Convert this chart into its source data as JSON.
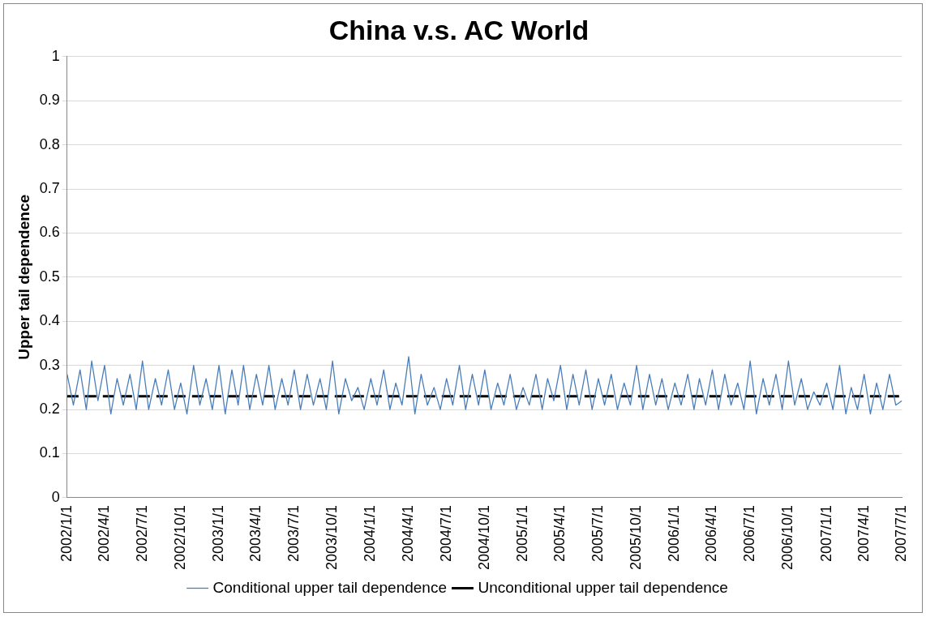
{
  "chart_data": {
    "type": "line",
    "title": "China v.s. AC World",
    "ylabel": "Upper tail dependence",
    "ylim": [
      0,
      1
    ],
    "yticks": [
      0,
      0.1,
      0.2,
      0.3,
      0.4,
      0.5,
      0.6,
      0.7,
      0.8,
      0.9,
      1
    ],
    "xlim": [
      "2002-01-01",
      "2007-07-01"
    ],
    "xticks": [
      {
        "value": "2002-01-01",
        "label": "2002/1/1"
      },
      {
        "value": "2002-04-01",
        "label": "2002/4/1"
      },
      {
        "value": "2002-07-01",
        "label": "2002/7/1"
      },
      {
        "value": "2002-10-01",
        "label": "2002/10/1"
      },
      {
        "value": "2003-01-01",
        "label": "2003/1/1"
      },
      {
        "value": "2003-04-01",
        "label": "2003/4/1"
      },
      {
        "value": "2003-07-01",
        "label": "2003/7/1"
      },
      {
        "value": "2003-10-01",
        "label": "2003/10/1"
      },
      {
        "value": "2004-01-01",
        "label": "2004/1/1"
      },
      {
        "value": "2004-04-01",
        "label": "2004/4/1"
      },
      {
        "value": "2004-07-01",
        "label": "2004/7/1"
      },
      {
        "value": "2004-10-01",
        "label": "2004/10/1"
      },
      {
        "value": "2005-01-01",
        "label": "2005/1/1"
      },
      {
        "value": "2005-04-01",
        "label": "2005/4/1"
      },
      {
        "value": "2005-07-01",
        "label": "2005/7/1"
      },
      {
        "value": "2005-10-01",
        "label": "2005/10/1"
      },
      {
        "value": "2006-01-01",
        "label": "2006/1/1"
      },
      {
        "value": "2006-04-01",
        "label": "2006/4/1"
      },
      {
        "value": "2006-07-01",
        "label": "2006/7/1"
      },
      {
        "value": "2006-10-01",
        "label": "2006/10/1"
      },
      {
        "value": "2007-01-01",
        "label": "2007/1/1"
      },
      {
        "value": "2007-04-01",
        "label": "2007/4/1"
      },
      {
        "value": "2007-07-01",
        "label": "2007/7/1"
      }
    ],
    "grid": "y",
    "legend": "bottom",
    "marker": "none",
    "series": [
      {
        "name": "Conditional upper tail dependence",
        "color": "#4a7ebb",
        "line_style": "solid",
        "x": [
          "2002-01-01",
          "2002-01-16",
          "2002-02-01",
          "2002-02-16",
          "2002-03-01",
          "2002-03-16",
          "2002-04-01",
          "2002-04-16",
          "2002-05-01",
          "2002-05-16",
          "2002-06-01",
          "2002-06-16",
          "2002-07-01",
          "2002-07-16",
          "2002-08-01",
          "2002-08-16",
          "2002-09-01",
          "2002-09-16",
          "2002-10-01",
          "2002-10-16",
          "2002-11-01",
          "2002-11-16",
          "2002-12-01",
          "2002-12-16",
          "2003-01-01",
          "2003-01-16",
          "2003-02-01",
          "2003-02-16",
          "2003-03-01",
          "2003-03-16",
          "2003-04-01",
          "2003-04-16",
          "2003-05-01",
          "2003-05-16",
          "2003-06-01",
          "2003-06-16",
          "2003-07-01",
          "2003-07-16",
          "2003-08-01",
          "2003-08-16",
          "2003-09-01",
          "2003-09-16",
          "2003-10-01",
          "2003-10-16",
          "2003-11-01",
          "2003-11-16",
          "2003-12-01",
          "2003-12-16",
          "2004-01-01",
          "2004-01-16",
          "2004-02-01",
          "2004-02-16",
          "2004-03-01",
          "2004-03-16",
          "2004-04-01",
          "2004-04-16",
          "2004-05-01",
          "2004-05-16",
          "2004-06-01",
          "2004-06-16",
          "2004-07-01",
          "2004-07-16",
          "2004-08-01",
          "2004-08-16",
          "2004-09-01",
          "2004-09-16",
          "2004-10-01",
          "2004-10-16",
          "2004-11-01",
          "2004-11-16",
          "2004-12-01",
          "2004-12-16",
          "2005-01-01",
          "2005-01-16",
          "2005-02-01",
          "2005-02-16",
          "2005-03-01",
          "2005-03-16",
          "2005-04-01",
          "2005-04-16",
          "2005-05-01",
          "2005-05-16",
          "2005-06-01",
          "2005-06-16",
          "2005-07-01",
          "2005-07-16",
          "2005-08-01",
          "2005-08-16",
          "2005-09-01",
          "2005-09-16",
          "2005-10-01",
          "2005-10-16",
          "2005-11-01",
          "2005-11-16",
          "2005-12-01",
          "2005-12-16",
          "2006-01-01",
          "2006-01-16",
          "2006-02-01",
          "2006-02-16",
          "2006-03-01",
          "2006-03-16",
          "2006-04-01",
          "2006-04-16",
          "2006-05-01",
          "2006-05-16",
          "2006-06-01",
          "2006-06-16",
          "2006-07-01",
          "2006-07-16",
          "2006-08-01",
          "2006-08-16",
          "2006-09-01",
          "2006-09-16",
          "2006-10-01",
          "2006-10-16",
          "2006-11-01",
          "2006-11-16",
          "2006-12-01",
          "2006-12-16",
          "2007-01-01",
          "2007-01-16",
          "2007-02-01",
          "2007-02-16",
          "2007-03-01",
          "2007-03-16",
          "2007-04-01",
          "2007-04-16",
          "2007-05-01",
          "2007-05-16",
          "2007-06-01",
          "2007-06-16",
          "2007-07-01"
        ],
        "values": [
          0.28,
          0.21,
          0.29,
          0.2,
          0.31,
          0.22,
          0.3,
          0.19,
          0.27,
          0.21,
          0.28,
          0.2,
          0.31,
          0.2,
          0.27,
          0.21,
          0.29,
          0.2,
          0.26,
          0.19,
          0.3,
          0.21,
          0.27,
          0.2,
          0.3,
          0.19,
          0.29,
          0.21,
          0.3,
          0.2,
          0.28,
          0.21,
          0.3,
          0.2,
          0.27,
          0.21,
          0.29,
          0.2,
          0.28,
          0.21,
          0.27,
          0.2,
          0.31,
          0.19,
          0.27,
          0.22,
          0.25,
          0.2,
          0.27,
          0.21,
          0.29,
          0.2,
          0.26,
          0.21,
          0.32,
          0.19,
          0.28,
          0.21,
          0.25,
          0.2,
          0.27,
          0.21,
          0.3,
          0.2,
          0.28,
          0.21,
          0.29,
          0.2,
          0.26,
          0.21,
          0.28,
          0.2,
          0.25,
          0.21,
          0.28,
          0.2,
          0.27,
          0.22,
          0.3,
          0.2,
          0.28,
          0.21,
          0.29,
          0.2,
          0.27,
          0.21,
          0.28,
          0.2,
          0.26,
          0.21,
          0.3,
          0.2,
          0.28,
          0.21,
          0.27,
          0.2,
          0.26,
          0.21,
          0.28,
          0.2,
          0.27,
          0.21,
          0.29,
          0.2,
          0.28,
          0.21,
          0.26,
          0.2,
          0.31,
          0.19,
          0.27,
          0.21,
          0.28,
          0.2,
          0.31,
          0.21,
          0.27,
          0.2,
          0.24,
          0.21,
          0.26,
          0.2,
          0.3,
          0.19,
          0.25,
          0.2,
          0.28,
          0.19,
          0.26,
          0.2,
          0.28,
          0.21,
          0.22
        ]
      },
      {
        "name": "Unconditional upper tail dependence",
        "color": "#000000",
        "line_style": "dashed",
        "x": [
          "2002-01-01",
          "2007-07-01"
        ],
        "values": [
          0.23,
          0.23
        ]
      }
    ]
  }
}
